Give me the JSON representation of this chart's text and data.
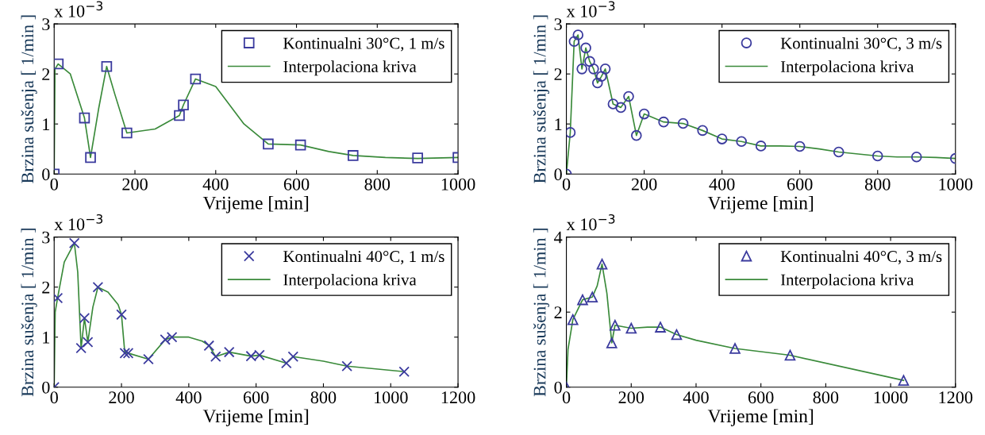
{
  "chart_data": [
    {
      "type": "scatter",
      "xlabel": "Vrijeme [min]",
      "ylabel": "Brzina sušenja [ 1/min ]",
      "annotations": [
        "x 10$^{−3}$"
      ],
      "xlim": [
        0,
        1000
      ],
      "xticks": [
        0,
        200,
        400,
        600,
        800,
        1000
      ],
      "ylim": [
        0,
        3
      ],
      "yticks": [
        0,
        1,
        2,
        3
      ],
      "legend": "top right",
      "grid": false,
      "series": [
        {
          "name": "Kontinualni 30°C, 1 m/s",
          "marker": "square",
          "color": "#3b3b9e",
          "x": [
            0,
            10,
            75,
            90,
            130,
            180,
            310,
            320,
            350,
            530,
            610,
            740,
            900,
            1000
          ],
          "values": [
            0,
            2.2,
            1.12,
            0.33,
            2.15,
            0.82,
            1.17,
            1.38,
            1.9,
            0.6,
            0.58,
            0.37,
            0.32,
            0.33
          ]
        },
        {
          "name": "Interpolaciona kriva",
          "type": "line",
          "marker": "none",
          "line_style": "solid",
          "color": "#3a8a3a",
          "x": [
            0,
            2,
            10,
            40,
            75,
            90,
            110,
            130,
            150,
            180,
            250,
            310,
            320,
            350,
            400,
            470,
            530,
            610,
            680,
            740,
            820,
            900,
            1000
          ],
          "values": [
            0,
            2.1,
            2.2,
            2.0,
            1.12,
            0.33,
            1.3,
            2.15,
            1.6,
            0.82,
            0.9,
            1.17,
            1.38,
            1.9,
            1.75,
            1.0,
            0.6,
            0.58,
            0.45,
            0.37,
            0.33,
            0.31,
            0.33
          ]
        }
      ]
    },
    {
      "type": "scatter",
      "xlabel": "Vrijeme [min]",
      "ylabel": "Brzina sušenja [ 1/min ]",
      "annotations": [
        "x 10$^{−3}$"
      ],
      "xlim": [
        0,
        1000
      ],
      "xticks": [
        0,
        200,
        400,
        600,
        800,
        1000
      ],
      "ylim": [
        0,
        3
      ],
      "yticks": [
        0,
        1,
        2,
        3
      ],
      "legend": "top right",
      "grid": false,
      "series": [
        {
          "name": "Kontinualni 30°C, 3 m/s",
          "marker": "circle",
          "color": "#3b3b9e",
          "x": [
            0,
            10,
            20,
            30,
            40,
            50,
            60,
            70,
            80,
            90,
            100,
            120,
            140,
            160,
            180,
            200,
            250,
            300,
            350,
            400,
            450,
            500,
            600,
            700,
            800,
            900,
            1000
          ],
          "values": [
            0,
            0.83,
            2.65,
            2.78,
            2.1,
            2.52,
            2.25,
            2.1,
            1.82,
            1.95,
            2.1,
            1.4,
            1.33,
            1.55,
            0.77,
            1.2,
            1.04,
            1.01,
            0.87,
            0.7,
            0.65,
            0.56,
            0.55,
            0.44,
            0.36,
            0.34,
            0.31
          ]
        },
        {
          "name": "Interpolaciona kriva",
          "type": "line",
          "marker": "none",
          "line_style": "solid",
          "color": "#3a8a3a",
          "x": [
            0,
            10,
            20,
            30,
            40,
            50,
            60,
            70,
            80,
            90,
            100,
            120,
            140,
            160,
            180,
            200,
            250,
            300,
            350,
            400,
            450,
            500,
            550,
            600,
            650,
            700,
            750,
            800,
            850,
            900,
            950,
            1000
          ],
          "values": [
            0,
            0.83,
            2.65,
            2.78,
            2.1,
            2.52,
            2.25,
            2.1,
            1.82,
            1.95,
            2.1,
            1.4,
            1.33,
            1.55,
            0.77,
            1.2,
            1.04,
            1.01,
            0.87,
            0.7,
            0.65,
            0.56,
            0.56,
            0.55,
            0.5,
            0.44,
            0.4,
            0.36,
            0.34,
            0.34,
            0.33,
            0.31
          ]
        }
      ]
    },
    {
      "type": "scatter",
      "xlabel": "Vrijeme [min]",
      "ylabel": "Brzina sušenja [ 1/min ]",
      "annotations": [
        "x 10$^{−3}$"
      ],
      "xlim": [
        0,
        1200
      ],
      "xticks": [
        0,
        200,
        400,
        600,
        800,
        1000,
        1200
      ],
      "ylim": [
        0,
        3
      ],
      "yticks": [
        0,
        1,
        2,
        3
      ],
      "legend": "top right",
      "grid": false,
      "series": [
        {
          "name": "Kontinualni 40°C, 1 m/s",
          "marker": "cross",
          "color": "#3b3b9e",
          "x": [
            0,
            10,
            60,
            80,
            90,
            100,
            130,
            200,
            210,
            220,
            280,
            330,
            350,
            460,
            480,
            520,
            585,
            610,
            690,
            710,
            870,
            1040
          ],
          "values": [
            0,
            1.78,
            2.88,
            0.78,
            1.38,
            0.9,
            2.0,
            1.45,
            0.68,
            0.68,
            0.56,
            0.95,
            1.0,
            0.83,
            0.61,
            0.7,
            0.62,
            0.64,
            0.48,
            0.61,
            0.42,
            0.31
          ]
        },
        {
          "name": "Interpolaciona kriva",
          "type": "line",
          "marker": "none",
          "line_style": "solid",
          "color": "#3a8a3a",
          "x": [
            0,
            3,
            10,
            30,
            60,
            70,
            80,
            90,
            100,
            115,
            130,
            160,
            190,
            200,
            210,
            220,
            280,
            330,
            350,
            400,
            440,
            460,
            480,
            520,
            585,
            610,
            690,
            710,
            800,
            870,
            1040
          ],
          "values": [
            0,
            1.5,
            1.78,
            2.5,
            2.88,
            2.3,
            0.78,
            1.38,
            0.9,
            1.6,
            2.0,
            1.9,
            1.65,
            1.45,
            0.68,
            0.68,
            0.56,
            0.95,
            1.0,
            1.0,
            0.92,
            0.83,
            0.61,
            0.7,
            0.62,
            0.64,
            0.48,
            0.61,
            0.52,
            0.42,
            0.31
          ]
        }
      ]
    },
    {
      "type": "scatter",
      "xlabel": "Vrijeme [min]",
      "ylabel": "Brzina sušenja [ 1/min ]",
      "annotations": [
        "x 10$^{−3}$"
      ],
      "xlim": [
        0,
        1200
      ],
      "xticks": [
        0,
        200,
        400,
        600,
        800,
        1000,
        1200
      ],
      "ylim": [
        0,
        4
      ],
      "yticks": [
        0,
        2,
        4
      ],
      "legend": "top right",
      "grid": false,
      "series": [
        {
          "name": "Kontinualni 40°C, 3 m/s",
          "marker": "triangle",
          "color": "#3b3b9e",
          "x": [
            0,
            20,
            50,
            80,
            110,
            140,
            150,
            200,
            290,
            340,
            520,
            690,
            1040
          ],
          "values": [
            0,
            1.8,
            2.33,
            2.4,
            3.28,
            1.18,
            1.65,
            1.57,
            1.6,
            1.4,
            1.03,
            0.85,
            0.18
          ]
        },
        {
          "name": "Interpolaciona kriva",
          "type": "line",
          "marker": "none",
          "line_style": "solid",
          "color": "#3a8a3a",
          "x": [
            0,
            5,
            20,
            50,
            80,
            95,
            110,
            125,
            140,
            150,
            200,
            250,
            290,
            340,
            400,
            520,
            690,
            1040
          ],
          "values": [
            0,
            1.0,
            1.8,
            2.33,
            2.4,
            2.7,
            3.28,
            2.5,
            1.18,
            1.65,
            1.57,
            1.6,
            1.6,
            1.4,
            1.25,
            1.03,
            0.85,
            0.18
          ]
        }
      ]
    }
  ]
}
